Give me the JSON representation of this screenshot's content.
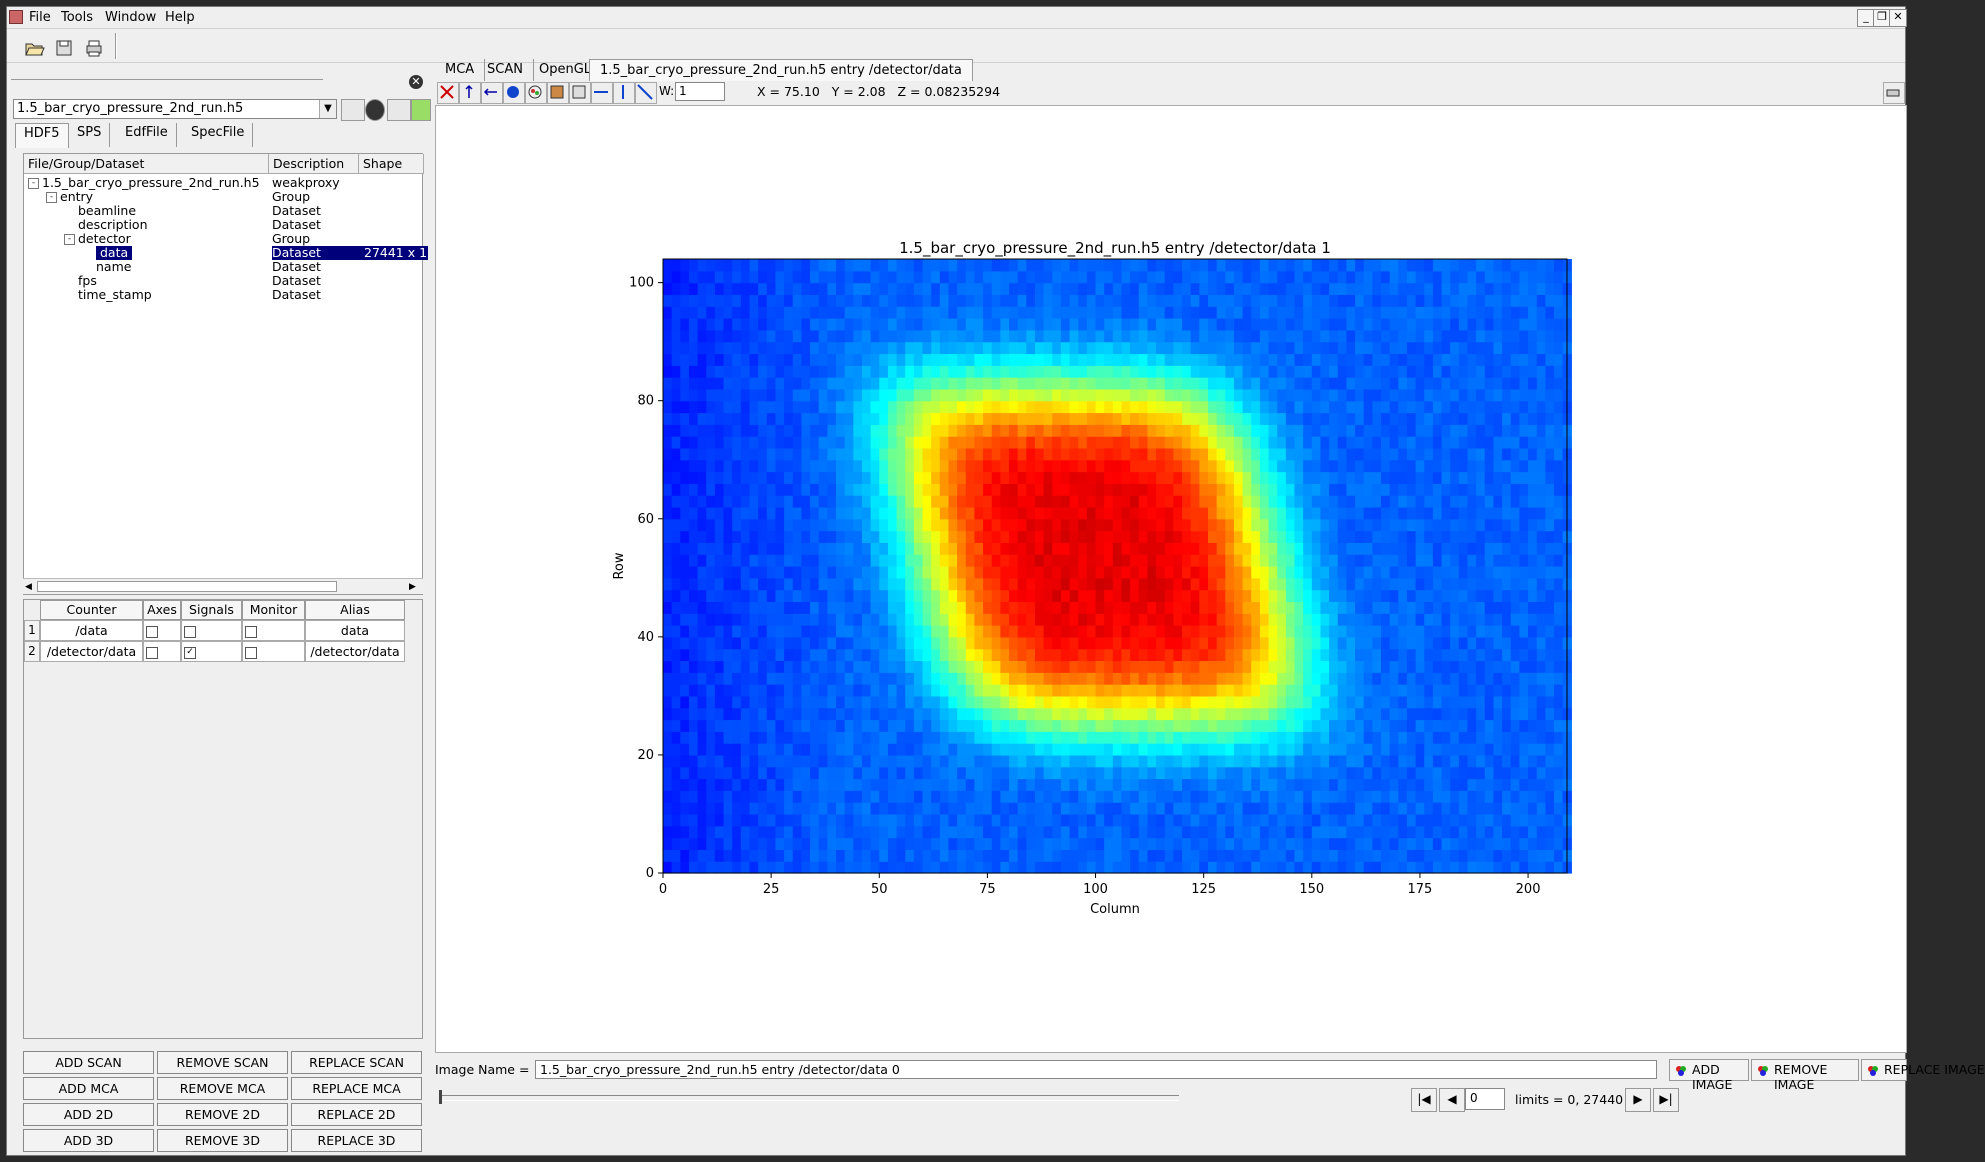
{
  "menu": {
    "items": [
      "File",
      "Tools",
      "Window",
      "Help"
    ]
  },
  "source": {
    "file": "1.5_bar_cryo_pressure_2nd_run.h5",
    "tabs": [
      "HDF5",
      "SPS",
      "EdfFile",
      "SpecFile"
    ],
    "active_tab": "HDF5"
  },
  "tree": {
    "columns": [
      "File/Group/Dataset",
      "Description",
      "Shape"
    ],
    "rows": [
      {
        "name": "1.5_bar_cryo_pressure_2nd_run.h5",
        "description": "weakproxy",
        "shape": "",
        "depth": 0,
        "expander": "-"
      },
      {
        "name": "entry",
        "description": "Group",
        "shape": "",
        "depth": 1,
        "expander": "-"
      },
      {
        "name": "beamline",
        "description": "Dataset",
        "shape": "",
        "depth": 2,
        "expander": ""
      },
      {
        "name": "description",
        "description": "Dataset",
        "shape": "",
        "depth": 2,
        "expander": ""
      },
      {
        "name": "detector",
        "description": "Group",
        "shape": "",
        "depth": 2,
        "expander": "-"
      },
      {
        "name": "data",
        "description": "Dataset",
        "shape": "27441 x 1",
        "depth": 3,
        "expander": "",
        "selected": true
      },
      {
        "name": "name",
        "description": "Dataset",
        "shape": "",
        "depth": 3,
        "expander": ""
      },
      {
        "name": "fps",
        "description": "Dataset",
        "shape": "",
        "depth": 2,
        "expander": ""
      },
      {
        "name": "time_stamp",
        "description": "Dataset",
        "shape": "",
        "depth": 2,
        "expander": ""
      }
    ]
  },
  "counters": {
    "columns": [
      "Counter",
      "Axes",
      "Signals",
      "Monitor",
      "Alias"
    ],
    "rows": [
      {
        "num": "1",
        "counter": "/data",
        "axes": false,
        "signals": false,
        "monitor": false,
        "alias": "data"
      },
      {
        "num": "2",
        "counter": "/detector/data",
        "axes": false,
        "signals": true,
        "monitor": false,
        "alias": "/detector/data"
      }
    ]
  },
  "actions": [
    [
      "ADD SCAN",
      "REMOVE SCAN",
      "REPLACE SCAN"
    ],
    [
      "ADD MCA",
      "REMOVE MCA",
      "REPLACE MCA"
    ],
    [
      "ADD 2D",
      "REMOVE 2D",
      "REPLACE 2D"
    ],
    [
      "ADD 3D",
      "REMOVE 3D",
      "REPLACE 3D"
    ]
  ],
  "right_tabs": [
    "MCA",
    "SCAN",
    "OpenGL",
    "1.5_bar_cryo_pressure_2nd_run.h5 entry /detector/data"
  ],
  "active_right_tab": "1.5_bar_cryo_pressure_2nd_run.h5 entry /detector/data",
  "graph_toolbar": {
    "width_label": "W:",
    "width_value": "1",
    "coords": "X = 75.10   Y = 2.08   Z = 0.08235294"
  },
  "chart_data": {
    "type": "heatmap",
    "title": "1.5_bar_cryo_pressure_2nd_run.h5 entry /detector/data 1",
    "xlabel": "Column",
    "ylabel": "Row",
    "xlim": [
      0,
      209
    ],
    "ylim": [
      0,
      104
    ],
    "xticks": [
      0,
      25,
      50,
      75,
      100,
      125,
      150,
      175,
      200
    ],
    "yticks": [
      0,
      20,
      40,
      60,
      80,
      100
    ],
    "colormap": "jet",
    "hot_region": "columns ~50-155, rows ~22-84, peak near column 100, row 50"
  },
  "image_name": {
    "label": "Image Name =",
    "value": "1.5_bar_cryo_pressure_2nd_run.h5 entry /detector/data 0"
  },
  "image_buttons": [
    "ADD IMAGE",
    "REMOVE IMAGE",
    "REPLACE IMAGE"
  ],
  "nav": {
    "index": "0",
    "limits": "limits = 0, 27440"
  }
}
